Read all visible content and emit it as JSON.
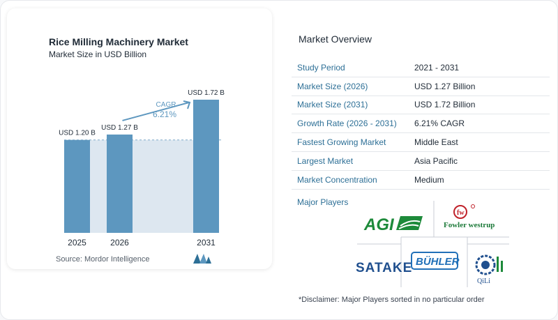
{
  "chart_data": {
    "type": "bar",
    "title": "Rice Milling Machinery Market",
    "subtitle": "Market Size in USD Billion",
    "categories": [
      "2025",
      "2026",
      "2031"
    ],
    "values": [
      1.2,
      1.27,
      1.72
    ],
    "value_labels": [
      "USD 1.20 B",
      "USD 1.27 B",
      "USD 1.72 B"
    ],
    "cagr_label": "CAGR",
    "cagr_value": "6.21%",
    "ylim": [
      0,
      1.72
    ],
    "source": "Source:  Mordor Intelligence",
    "colors": {
      "bar": "#5d97bf",
      "bar_top": "#6ea6cb",
      "band": "#dde7f0",
      "arrow": "#5d97bf",
      "cagr": "#5d97bf"
    }
  },
  "overview": {
    "title": "Market Overview",
    "rows": [
      {
        "label": "Study Period",
        "value": "2021 - 2031"
      },
      {
        "label": "Market Size (2026)",
        "value": "USD 1.27 Billion"
      },
      {
        "label": "Market Size (2031)",
        "value": "USD 1.72 Billion"
      },
      {
        "label": "Growth Rate (2026 - 2031)",
        "value": "6.21% CAGR"
      },
      {
        "label": "Fastest Growing Market",
        "value": "Middle East"
      },
      {
        "label": "Largest Market",
        "value": "Asia Pacific"
      },
      {
        "label": "Market Concentration",
        "value": "Medium"
      }
    ]
  },
  "players": {
    "title": "Major Players",
    "logos": [
      "AGI",
      "fowler westrup",
      "SATAKE",
      "BUHLER",
      "QiLi"
    ]
  },
  "disclaimer": "*Disclaimer: Major Players sorted in no particular order"
}
